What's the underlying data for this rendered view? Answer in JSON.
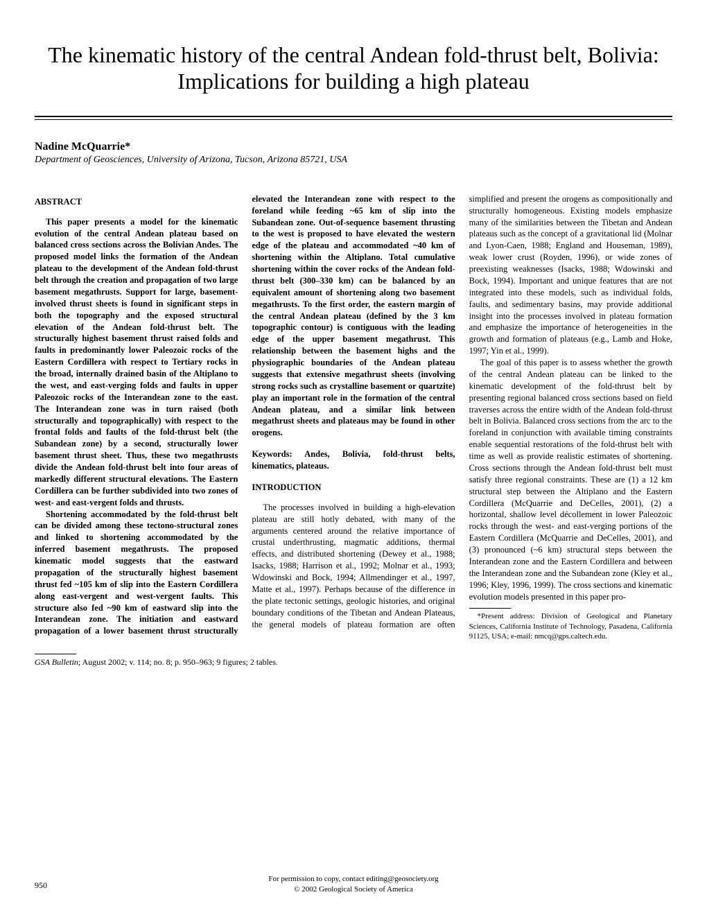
{
  "title": "The kinematic history of the central Andean fold-thrust belt, Bolivia: Implications for building a high plateau",
  "author": "Nadine McQuarrie*",
  "affiliation": "Department of Geosciences, University of Arizona, Tucson, Arizona 85721, USA",
  "abstract_header": "ABSTRACT",
  "abstract_p1": "This paper presents a model for the kinematic evolution of the central Andean plateau based on balanced cross sections across the Bolivian Andes. The proposed model links the formation of the Andean plateau to the development of the Andean fold-thrust belt through the creation and propagation of two large basement megathrusts. Support for large, basement-involved thrust sheets is found in significant steps in both the topography and the exposed structural elevation of the Andean fold-thrust belt. The structurally highest basement thrust raised folds and faults in predominantly lower Paleozoic rocks of the Eastern Cordillera with respect to Tertiary rocks in the broad, internally drained basin of the Altiplano to the west, and east-verging folds and faults in upper Paleozoic rocks of the Interandean zone to the east. The Interandean zone was in turn raised (both structurally and topographically) with respect to the frontal folds and faults of the fold-thrust belt (the Subandean zone) by a second, structurally lower basement thrust sheet. Thus, these two megathrusts divide the Andean fold-thrust belt into four areas of markedly different structural elevations. The Eastern Cordillera can be further subdivided into two zones of west- and east-vergent folds and thrusts.",
  "abstract_p2": "Shortening accommodated by the fold-thrust belt can be divided among these tectono-structural zones and linked to shortening accommodated by the inferred basement megathrusts. The proposed kinematic model suggests that the eastward propagation of the structurally highest basement thrust fed ~105 km of slip into the Eastern Cordillera along east-vergent and west-vergent faults. This structure also fed ~90 km of eastward slip into the Interandean zone. The initiation and eastward propagation of a lower basement thrust structurally elevated the Interandean zone with respect to the foreland while feeding ~65 km of slip into the Subandean zone. Out-of-sequence basement thrusting to the west is proposed to have elevated the western edge of the plateau and accommodated ~40 km of shortening within the Altiplano. Total cumulative shortening within the cover rocks of the Andean fold-thrust belt (300–330 km) can be balanced by an equivalent amount of shortening along two basement megathrusts. To the first order, the eastern margin of the central Andean plateau (defined by the 3 km topographic contour) is contiguous with the leading edge of the upper basement megathrust. This relationship between the basement highs and the physiographic boundaries of the Andean plateau suggests that extensive megathrust sheets (involving strong rocks such as crystalline basement or quartzite) play an important role in the formation of the central Andean plateau, and a similar link between megathrust sheets and plateaus may be found in other orogens.",
  "keywords": "Keywords: Andes, Bolivia, fold-thrust belts, kinematics, plateaus.",
  "intro_header": "INTRODUCTION",
  "intro_p1": "The processes involved in building a high-elevation plateau are still hotly debated, with many of the arguments centered around the relative importance of crustal underthrusting, magmatic additions, thermal effects, and distributed shortening (Dewey et al., 1988; Isacks, 1988; Harrison et al., 1992; Molnar et al., 1993; Wdowinski and Bock, 1994; Allmendinger et al., 1997, Matte et al., 1997). Perhaps because of the difference in the plate tectonic settings, geologic histories, and original boundary conditions of the Tibetan and Andean Plateaus, the general models of plateau formation are often simplified and present the orogens as compositionally and structurally homogeneous. Existing models emphasize many of the similarities between the Tibetan and Andean plateaus such as the concept of a gravitational lid (Molnar and Lyon-Caen, 1988; England and Houseman, 1989), weak lower crust (Royden, 1996), or wide zones of preexisting weaknesses (Isacks, 1988; Wdowinski and Bock, 1994). Important and unique features that are not integrated into these models, such as individual folds, faults, and sedimentary basins, may provide additional insight into the processes involved in plateau formation and emphasize the importance of heterogeneities in the growth and formation of plateaus (e.g., Lamb and Hoke, 1997; Yin et al., 1999).",
  "intro_p2": "The goal of this paper is to assess whether the growth of the central Andean plateau can be linked to the kinematic development of the fold-thrust belt by presenting regional balanced cross sections based on field traverses across the entire width of the Andean fold-thrust belt in Bolivia. Balanced cross sections from the arc to the foreland in conjunction with available timing constraints enable sequential restorations of the fold-thrust belt with time as well as provide realistic estimates of shortening. Cross sections through the Andean fold-thrust belt must satisfy three regional constraints. These are (1) a 12 km structural step between the Altiplano and the Eastern Cordillera (McQuarrie and DeCelles, 2001), (2) a horizontal, shallow level décollement in lower Paleozoic rocks through the west- and east-verging portions of the Eastern Cordillera (McQuarrie and DeCelles, 2001), and (3) pronounced (~6 km) structural steps between the Interandean zone and the Eastern Cordillera and between the Interandean zone and the Subandean zone (Kley et al., 1996; Kley, 1996, 1999). The cross sections and kinematic evolution models presented in this paper pro-",
  "footnote": "*Present address: Division of Geological and Planetary Sciences, California Institute of Technology, Pasadena, California 91125, USA; e-mail: nmcq@gps.caltech.edu.",
  "citation_italic": "GSA Bulletin",
  "citation_rest": "; August 2002; v. 114; no. 8; p. 950–963; 9 figures; 2 tables.",
  "footer_line1": "For permission to copy, contact editing@geosociety.org",
  "footer_line2": "© 2002 Geological Society of America",
  "page_number": "950"
}
